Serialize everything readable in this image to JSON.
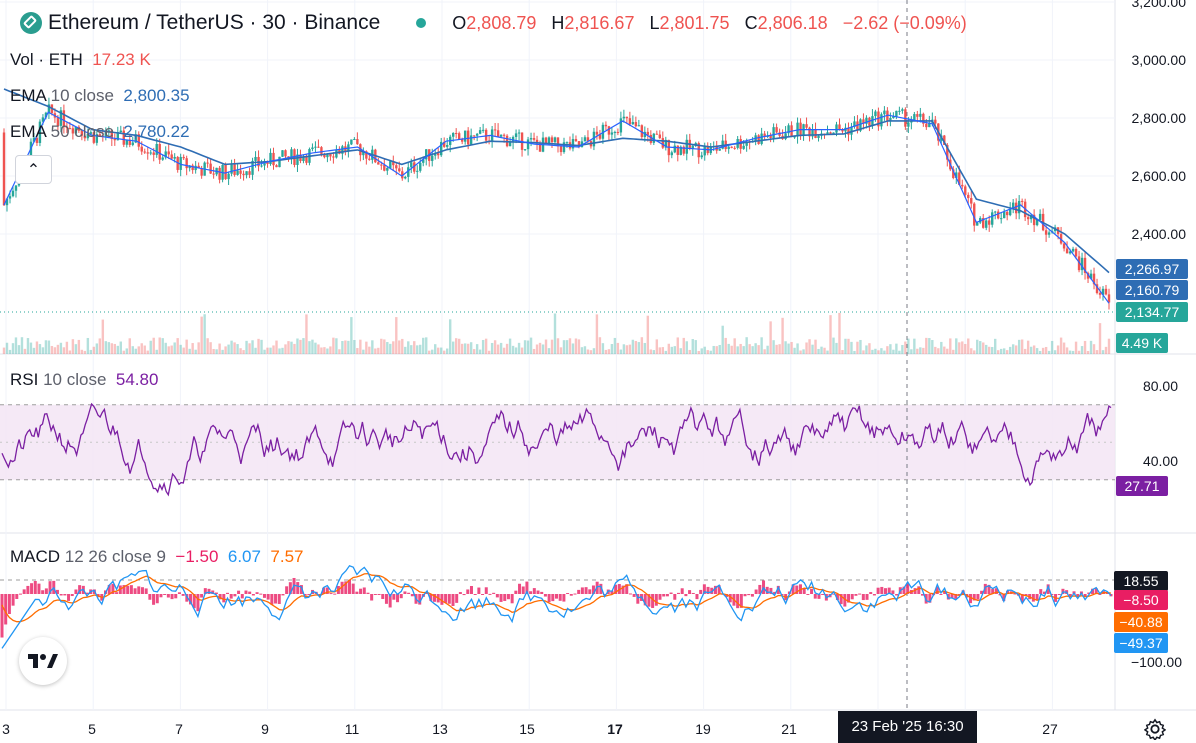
{
  "header": {
    "symbol": "Ethereum / TetherUS · 30 · Binance",
    "ohlc": {
      "o_label": "O",
      "o": "2,808.79",
      "h_label": "H",
      "h": "2,816.67",
      "l_label": "L",
      "l": "2,801.75",
      "c_label": "C",
      "c": "2,806.18",
      "change": "−2.62 (−0.09%)"
    }
  },
  "legends": {
    "vol_label": "Vol · ETH",
    "vol_value": "17.23 K",
    "ema10_label": "EMA",
    "ema10_params": "10 close",
    "ema10_value": "2,800.35",
    "ema50_label": "EMA",
    "ema50_params": "50 close",
    "ema50_value": "2,780.22",
    "rsi_label": "RSI",
    "rsi_params": "10 close",
    "rsi_value": "54.80",
    "macd_label": "MACD",
    "macd_params": "12 26 close 9",
    "macd_hist": "−1.50",
    "macd_line": "6.07",
    "macd_signal": "7.57"
  },
  "price_tags": {
    "ema50": "2,266.97",
    "ema10": "2,160.79",
    "last": "2,134.77",
    "volume": "4.49 K",
    "rsi": "27.71",
    "macd_hi": "18.55",
    "macd_hist": "−8.50",
    "macd_signal": "−40.88",
    "macd_line": "−49.37"
  },
  "axes": {
    "price_ticks": [
      "3,200.00",
      "3,000.00",
      "2,800.00",
      "2,600.00",
      "2,400.00"
    ],
    "rsi_ticks": [
      "80.00",
      "40.00"
    ],
    "macd_ticks": [
      "−100.00"
    ],
    "x_ticks": [
      "3",
      "5",
      "7",
      "9",
      "11",
      "13",
      "15",
      "17",
      "19",
      "21",
      "27"
    ],
    "crosshair_label": "23 Feb '25   16:30"
  },
  "colors": {
    "up": "#26a69a",
    "down": "#ef5350",
    "ema10": "#2962ff",
    "ema50": "#2e6db4",
    "rsi": "#7b1fa2",
    "macd": "#2196f3",
    "signal": "#ff6d00",
    "hist": "#e91e63"
  },
  "chart_data": {
    "type": "line",
    "title": "Ethereum / TetherUS · 30 · Binance",
    "x": [
      "3",
      "4",
      "5",
      "6",
      "7",
      "8",
      "9",
      "10",
      "11",
      "12",
      "13",
      "14",
      "15",
      "16",
      "17",
      "18",
      "19",
      "20",
      "21",
      "22",
      "23",
      "24",
      "25",
      "26",
      "27",
      "28"
    ],
    "series": [
      {
        "name": "EMA 10 close",
        "values": [
          2500,
          2820,
          2740,
          2720,
          2640,
          2610,
          2650,
          2680,
          2700,
          2600,
          2720,
          2740,
          2710,
          2700,
          2790,
          2700,
          2690,
          2730,
          2760,
          2760,
          2810,
          2780,
          2440,
          2500,
          2370,
          2161
        ]
      },
      {
        "name": "EMA 50 close",
        "values": [
          2900,
          2840,
          2760,
          2740,
          2700,
          2640,
          2650,
          2670,
          2690,
          2640,
          2690,
          2720,
          2715,
          2705,
          2730,
          2720,
          2700,
          2720,
          2740,
          2745,
          2790,
          2790,
          2520,
          2480,
          2400,
          2267
        ]
      }
    ],
    "ylim": [
      2100,
      3200
    ],
    "ylabel": "",
    "xlabel": ""
  }
}
